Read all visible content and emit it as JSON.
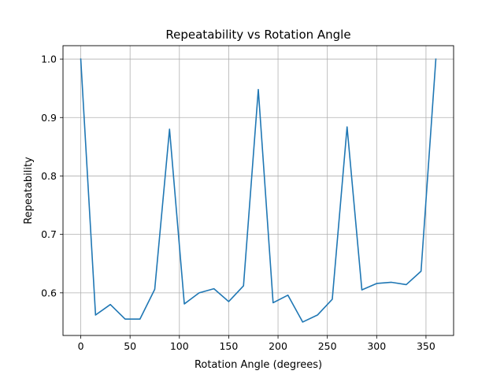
{
  "chart_data": {
    "type": "line",
    "title": "Repeatability vs Rotation Angle",
    "xlabel": "Rotation Angle (degrees)",
    "ylabel": "Repeatability",
    "xlim": [
      -18,
      378
    ],
    "ylim": [
      0.527,
      1.023
    ],
    "xticks": [
      0,
      50,
      100,
      150,
      200,
      250,
      300,
      350
    ],
    "yticks": [
      0.6,
      0.7,
      0.8,
      0.9,
      1.0
    ],
    "ytick_labels": [
      "0.6",
      "0.7",
      "0.8",
      "0.9",
      "1.0"
    ],
    "grid": true,
    "series": [
      {
        "color": "#1f77b4",
        "x": [
          0,
          15,
          30,
          45,
          60,
          75,
          90,
          105,
          120,
          135,
          150,
          165,
          180,
          195,
          210,
          225,
          240,
          255,
          270,
          285,
          300,
          315,
          330,
          345,
          360
        ],
        "y": [
          1.0,
          0.562,
          0.58,
          0.555,
          0.555,
          0.606,
          0.88,
          0.581,
          0.6,
          0.607,
          0.585,
          0.612,
          0.948,
          0.583,
          0.596,
          0.55,
          0.562,
          0.589,
          0.884,
          0.605,
          0.616,
          0.618,
          0.614,
          0.637,
          1.0
        ]
      }
    ]
  }
}
